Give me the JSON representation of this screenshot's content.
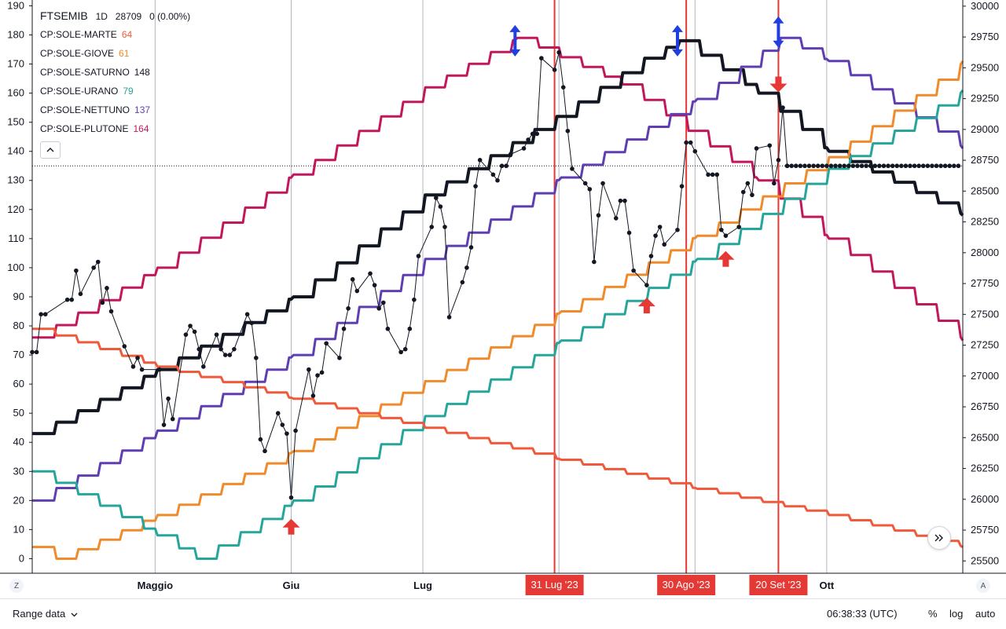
{
  "legend": {
    "symbol": "FTSEMIB",
    "interval": "1D",
    "value": "28709",
    "change": "0 (0.00%)",
    "items": [
      {
        "label": "CP:SOLE-MARTE",
        "value": "64",
        "color": "#f05a3a"
      },
      {
        "label": "CP:SOLE-GIOVE",
        "value": "61",
        "color": "#f08a2a"
      },
      {
        "label": "CP:SOLE-SATURNO",
        "value": "148",
        "color": "#131722"
      },
      {
        "label": "CP:SOLE-URANO",
        "value": "79",
        "color": "#26a69a"
      },
      {
        "label": "CP:SOLE-NETTUNO",
        "value": "137",
        "color": "#5e3eb1"
      },
      {
        "label": "CP:SOLE-PLUTONE",
        "value": "164",
        "color": "#c2185b"
      }
    ],
    "collapse_icon": "chevron-up-icon"
  },
  "chart_data": {
    "type": "line",
    "x_range": [
      "2023-04-03",
      "2023-11-01"
    ],
    "x_ticks": [
      {
        "label": "Maggio",
        "date": "2023-05-01"
      },
      {
        "label": "Giu",
        "date": "2023-06-01"
      },
      {
        "label": "Lug",
        "date": "2023-07-01"
      },
      {
        "label": "Ott",
        "date": "2023-10-01"
      }
    ],
    "left_axis": {
      "ylim": [
        -5,
        192
      ],
      "ticks": [
        0,
        10,
        20,
        30,
        40,
        50,
        60,
        70,
        80,
        90,
        100,
        110,
        120,
        130,
        140,
        150,
        160,
        170,
        180,
        190
      ]
    },
    "right_axis": {
      "ylim": [
        25400,
        30050
      ],
      "ticks": [
        25500,
        25750,
        26000,
        26250,
        26500,
        26750,
        27000,
        27250,
        27500,
        27750,
        28000,
        28250,
        28500,
        28750,
        29000,
        29250,
        29500,
        29750,
        30000
      ]
    },
    "reference_line": {
      "axis": "left",
      "value": 135
    },
    "vertical_markers": [
      {
        "label": "31 Lug '23",
        "date": "2023-07-31",
        "color": "#e53935"
      },
      {
        "label": "30 Ago '23",
        "date": "2023-08-30",
        "color": "#e53935"
      },
      {
        "label": "20 Set '23",
        "date": "2023-09-20",
        "color": "#e53935"
      }
    ],
    "aspect_lines": [
      {
        "name": "CP:SOLE-PLUTONE",
        "color": "#c2185b",
        "points": [
          [
            "2023-04-03",
            76
          ],
          [
            "2023-05-01",
            100
          ],
          [
            "2023-06-01",
            132
          ],
          [
            "2023-07-01",
            162
          ],
          [
            "2023-07-22",
            179
          ],
          [
            "2023-08-15",
            163
          ],
          [
            "2023-09-15",
            130
          ],
          [
            "2023-10-01",
            110
          ],
          [
            "2023-11-01",
            75
          ]
        ]
      },
      {
        "name": "CP:SOLE-SATURNO",
        "color": "#131722",
        "points": [
          [
            "2023-04-03",
            43
          ],
          [
            "2023-05-01",
            65
          ],
          [
            "2023-06-01",
            90
          ],
          [
            "2023-07-01",
            125
          ],
          [
            "2023-07-31",
            152
          ],
          [
            "2023-08-20",
            172
          ],
          [
            "2023-08-28",
            178
          ],
          [
            "2023-09-15",
            160
          ],
          [
            "2023-10-01",
            140
          ],
          [
            "2023-11-01",
            118
          ]
        ]
      },
      {
        "name": "CP:SOLE-NETTUNO",
        "color": "#5e3eb1",
        "points": [
          [
            "2023-04-03",
            20
          ],
          [
            "2023-05-01",
            44
          ],
          [
            "2023-06-01",
            70
          ],
          [
            "2023-07-01",
            103
          ],
          [
            "2023-08-01",
            131
          ],
          [
            "2023-09-01",
            158
          ],
          [
            "2023-09-20",
            179
          ],
          [
            "2023-10-01",
            171
          ],
          [
            "2023-11-01",
            141
          ]
        ]
      },
      {
        "name": "CP:SOLE-GIOVE",
        "color": "#f08a2a",
        "points": [
          [
            "2023-04-03",
            4
          ],
          [
            "2023-04-08",
            0
          ],
          [
            "2023-05-01",
            15
          ],
          [
            "2023-06-01",
            37
          ],
          [
            "2023-07-01",
            61
          ],
          [
            "2023-08-01",
            85
          ],
          [
            "2023-09-01",
            111
          ],
          [
            "2023-10-01",
            138
          ],
          [
            "2023-11-01",
            171
          ]
        ]
      },
      {
        "name": "CP:SOLE-URANO",
        "color": "#26a69a",
        "points": [
          [
            "2023-04-03",
            30
          ],
          [
            "2023-05-01",
            8
          ],
          [
            "2023-05-10",
            0
          ],
          [
            "2023-06-01",
            20
          ],
          [
            "2023-07-01",
            49
          ],
          [
            "2023-08-01",
            75
          ],
          [
            "2023-09-01",
            103
          ],
          [
            "2023-10-01",
            134
          ],
          [
            "2023-11-01",
            161
          ]
        ]
      },
      {
        "name": "CP:SOLE-MARTE",
        "color": "#f05a3a",
        "points": [
          [
            "2023-04-03",
            79
          ],
          [
            "2023-05-01",
            66
          ],
          [
            "2023-06-01",
            55
          ],
          [
            "2023-07-01",
            45
          ],
          [
            "2023-08-01",
            34
          ],
          [
            "2023-09-01",
            24
          ],
          [
            "2023-10-01",
            15
          ],
          [
            "2023-11-01",
            4
          ]
        ]
      }
    ],
    "price_series": {
      "name": "FTSEMIB",
      "axis": "left",
      "color": "#131722",
      "points": [
        [
          "2023-04-03",
          71
        ],
        [
          "2023-04-04",
          71
        ],
        [
          "2023-04-05",
          84
        ],
        [
          "2023-04-06",
          84
        ],
        [
          "2023-04-11",
          89
        ],
        [
          "2023-04-12",
          89
        ],
        [
          "2023-04-13",
          99
        ],
        [
          "2023-04-14",
          91
        ],
        [
          "2023-04-17",
          100
        ],
        [
          "2023-04-18",
          102
        ],
        [
          "2023-04-19",
          88
        ],
        [
          "2023-04-20",
          93
        ],
        [
          "2023-04-21",
          85
        ],
        [
          "2023-04-24",
          73
        ],
        [
          "2023-04-26",
          66
        ],
        [
          "2023-04-27",
          69
        ],
        [
          "2023-04-28",
          65
        ],
        [
          "2023-05-02",
          65
        ],
        [
          "2023-05-03",
          46
        ],
        [
          "2023-05-04",
          55
        ],
        [
          "2023-05-05",
          48
        ],
        [
          "2023-05-08",
          77
        ],
        [
          "2023-05-09",
          80
        ],
        [
          "2023-05-10",
          78
        ],
        [
          "2023-05-11",
          72
        ],
        [
          "2023-05-12",
          66
        ],
        [
          "2023-05-15",
          77
        ],
        [
          "2023-05-16",
          72
        ],
        [
          "2023-05-17",
          70
        ],
        [
          "2023-05-18",
          70
        ],
        [
          "2023-05-19",
          72
        ],
        [
          "2023-05-22",
          84
        ],
        [
          "2023-05-23",
          81
        ],
        [
          "2023-05-24",
          69
        ],
        [
          "2023-05-25",
          41
        ],
        [
          "2023-05-26",
          37
        ],
        [
          "2023-05-29",
          50
        ],
        [
          "2023-05-30",
          46
        ],
        [
          "2023-05-31",
          43
        ],
        [
          "2023-06-01",
          21
        ],
        [
          "2023-06-02",
          44
        ],
        [
          "2023-06-05",
          65
        ],
        [
          "2023-06-06",
          56
        ],
        [
          "2023-06-07",
          63
        ],
        [
          "2023-06-08",
          64
        ],
        [
          "2023-06-09",
          74
        ],
        [
          "2023-06-12",
          69
        ],
        [
          "2023-06-13",
          79
        ],
        [
          "2023-06-14",
          86
        ],
        [
          "2023-06-15",
          96
        ],
        [
          "2023-06-16",
          92
        ],
        [
          "2023-06-19",
          98
        ],
        [
          "2023-06-20",
          94
        ],
        [
          "2023-06-21",
          86
        ],
        [
          "2023-06-22",
          88
        ],
        [
          "2023-06-23",
          79
        ],
        [
          "2023-06-26",
          71
        ],
        [
          "2023-06-27",
          72
        ],
        [
          "2023-06-28",
          79
        ],
        [
          "2023-06-29",
          89
        ],
        [
          "2023-06-30",
          104
        ],
        [
          "2023-07-03",
          114
        ],
        [
          "2023-07-04",
          124
        ],
        [
          "2023-07-05",
          121
        ],
        [
          "2023-07-06",
          114
        ],
        [
          "2023-07-07",
          83
        ],
        [
          "2023-07-10",
          95
        ],
        [
          "2023-07-11",
          100
        ],
        [
          "2023-07-12",
          107
        ],
        [
          "2023-07-13",
          128
        ],
        [
          "2023-07-14",
          137
        ],
        [
          "2023-07-17",
          132
        ],
        [
          "2023-07-18",
          130
        ],
        [
          "2023-07-19",
          135
        ],
        [
          "2023-07-20",
          135
        ],
        [
          "2023-07-21",
          139
        ],
        [
          "2023-07-24",
          141
        ],
        [
          "2023-07-25",
          144
        ],
        [
          "2023-07-26",
          146
        ],
        [
          "2023-07-27",
          146
        ],
        [
          "2023-07-28",
          172
        ],
        [
          "2023-07-31",
          168
        ],
        [
          "2023-08-01",
          174
        ],
        [
          "2023-08-02",
          162
        ],
        [
          "2023-08-03",
          147
        ],
        [
          "2023-08-04",
          134
        ],
        [
          "2023-08-07",
          129
        ],
        [
          "2023-08-08",
          127
        ],
        [
          "2023-08-09",
          102
        ],
        [
          "2023-08-10",
          118
        ],
        [
          "2023-08-11",
          129
        ],
        [
          "2023-08-14",
          117
        ],
        [
          "2023-08-15",
          123
        ],
        [
          "2023-08-16",
          123
        ],
        [
          "2023-08-17",
          112
        ],
        [
          "2023-08-18",
          99
        ],
        [
          "2023-08-21",
          94
        ],
        [
          "2023-08-22",
          104
        ],
        [
          "2023-08-23",
          111
        ],
        [
          "2023-08-24",
          114
        ],
        [
          "2023-08-25",
          108
        ],
        [
          "2023-08-28",
          113
        ],
        [
          "2023-08-29",
          128
        ],
        [
          "2023-08-30",
          143
        ],
        [
          "2023-08-31",
          143
        ],
        [
          "2023-09-01",
          140
        ],
        [
          "2023-09-04",
          132
        ],
        [
          "2023-09-05",
          132
        ],
        [
          "2023-09-06",
          132
        ],
        [
          "2023-09-07",
          113
        ],
        [
          "2023-09-08",
          111
        ],
        [
          "2023-09-11",
          114
        ],
        [
          "2023-09-12",
          126
        ],
        [
          "2023-09-13",
          129
        ],
        [
          "2023-09-14",
          125
        ],
        [
          "2023-09-15",
          141
        ],
        [
          "2023-09-18",
          142
        ],
        [
          "2023-09-19",
          129
        ],
        [
          "2023-09-20",
          137
        ],
        [
          "2023-09-21",
          155
        ],
        [
          "2023-09-22",
          135
        ]
      ],
      "projection": {
        "value": 135,
        "from": "2023-09-22",
        "to": "2023-10-31"
      }
    },
    "annotations": [
      {
        "type": "arrow-up",
        "date": "2023-06-01",
        "value": 11,
        "color": "#e53935"
      },
      {
        "type": "arrow-up",
        "date": "2023-08-21",
        "value": 87,
        "color": "#e53935"
      },
      {
        "type": "arrow-up",
        "date": "2023-09-08",
        "value": 103,
        "color": "#e53935"
      },
      {
        "type": "arrow-down",
        "date": "2023-09-20",
        "value": 163,
        "color": "#e53935"
      },
      {
        "type": "double-arrow",
        "date": "2023-07-22",
        "value": 178,
        "color": "#1f3fe0"
      },
      {
        "type": "double-arrow",
        "date": "2023-08-28",
        "value": 178,
        "color": "#1f3fe0"
      },
      {
        "type": "double-arrow",
        "date": "2023-09-20",
        "value": 181,
        "color": "#1f3fe0"
      }
    ]
  },
  "bottom_bar": {
    "range_label": "Range data",
    "range_icon": "chevron-down-icon",
    "time": "06:38:33 (UTC)",
    "percent": "%",
    "log": "log",
    "auto": "auto"
  },
  "corner_left": "Z",
  "corner_right": "A",
  "scroll_icon": "double-chevron-right-icon"
}
